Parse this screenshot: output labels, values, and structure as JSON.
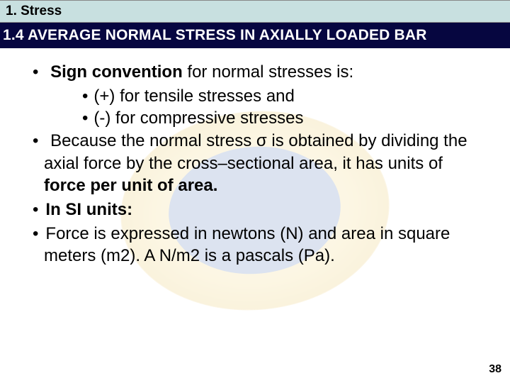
{
  "chapter": {
    "label": "1. Stress"
  },
  "section": {
    "label": "1.4 AVERAGE NORMAL STRESS IN AXIALLY LOADED BAR"
  },
  "bullets": {
    "b1_bold": "Sign convention",
    "b1_rest": " for normal stresses is:",
    "b1a": "(+) for tensile stresses and",
    "b1b": "(-) for compressive stresses",
    "b2_pre": "Because the normal stress σ is obtained by dividing the axial force by the cross–sectional area, it has units of ",
    "b2_bold": "force per unit of area.",
    "b3": "In SI units:",
    "b4": "Force is expressed in newtons (N) and area in square meters (m2). A N/m2 is a pascals (Pa)."
  },
  "page_number": "38",
  "colors": {
    "chapter_bg": "#c8e0e0",
    "section_bg": "#060640",
    "section_text": "#ffffff",
    "body_text": "#000000",
    "slide_bg": "#ffffff"
  },
  "typography": {
    "body_fontsize_pt": 18,
    "chapter_fontsize_pt": 14,
    "section_fontsize_pt": 16,
    "page_num_fontsize_pt": 12
  }
}
